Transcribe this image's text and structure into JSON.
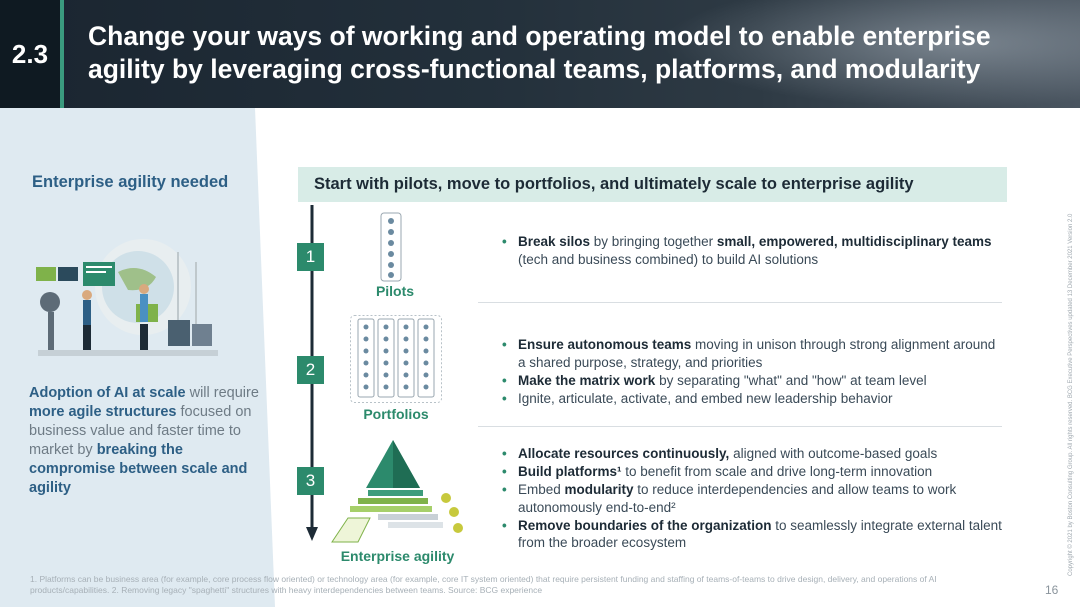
{
  "header": {
    "section_number": "2.3",
    "title_line1": "Change your ways of working and operating model to enable enterprise",
    "title_line2": "agility by leveraging cross-functional teams, platforms, and modularity"
  },
  "left": {
    "heading": "Enterprise agility needed",
    "adoption": {
      "p1_bold": "Adoption of AI at scale",
      "p2": " will require ",
      "p3_bold": "more agile structures",
      "p4": " focused on business value and faster time to market by ",
      "p5_bold": "breaking the compromise between scale and agility"
    }
  },
  "banner": "Start with pilots, move to portfolios, and ultimately scale to enterprise agility",
  "stages": [
    {
      "number": "1",
      "label": "Pilots"
    },
    {
      "number": "2",
      "label": "Portfolios"
    },
    {
      "number": "3",
      "label": "Enterprise agility"
    }
  ],
  "stage1_bullets": [
    {
      "b1": "Break silos",
      "t1": " by bringing together ",
      "b2": "small, empowered, multidisciplinary teams",
      "t2": " (tech and business combined) to build AI solutions"
    }
  ],
  "stage2_bullets": [
    {
      "b1": "Ensure autonomous teams",
      "t1": " moving in unison through strong alignment around a shared purpose, strategy, and priorities"
    },
    {
      "b1": "Make the matrix work",
      "t1": " by separating \"what\" and \"how\" at team level"
    },
    {
      "t1": "Ignite, articulate, activate, and embed new leadership behavior"
    }
  ],
  "stage3_bullets": [
    {
      "b1": "Allocate resources continuously,",
      "t1": " aligned with outcome-based goals"
    },
    {
      "b1": "Build platforms¹",
      "t1": " to benefit from scale and drive long-term innovation"
    },
    {
      "t0": "Embed ",
      "b1": "modularity",
      "t1": " to reduce interdependencies and allow teams to work autonomously end-to-end²"
    },
    {
      "b1": "Remove boundaries of the organization",
      "t1": " to seamlessly integrate external talent from the broader ecosystem"
    }
  ],
  "footnote": "1. Platforms can be business area (for example, core process flow oriented) or technology area (for example, core IT system oriented) that require persistent funding and staffing of teams-of-teams to drive design, delivery, and operations of AI products/capabilities. 2. Removing legacy \"spaghetti\" structures with heavy interdependencies between teams. Source: BCG experience",
  "page_number": "16",
  "copyright": "Copyright © 2021 by Boston Consulting Group. All rights reserved. BCG Executive Perspectives updated 13 December 2021 Version 2.0",
  "colors": {
    "accent": "#2c8a6c",
    "heading_blue": "#2d5f85",
    "banner_bg": "#d8ece7",
    "left_panel_bg": "#dfeaf1"
  }
}
